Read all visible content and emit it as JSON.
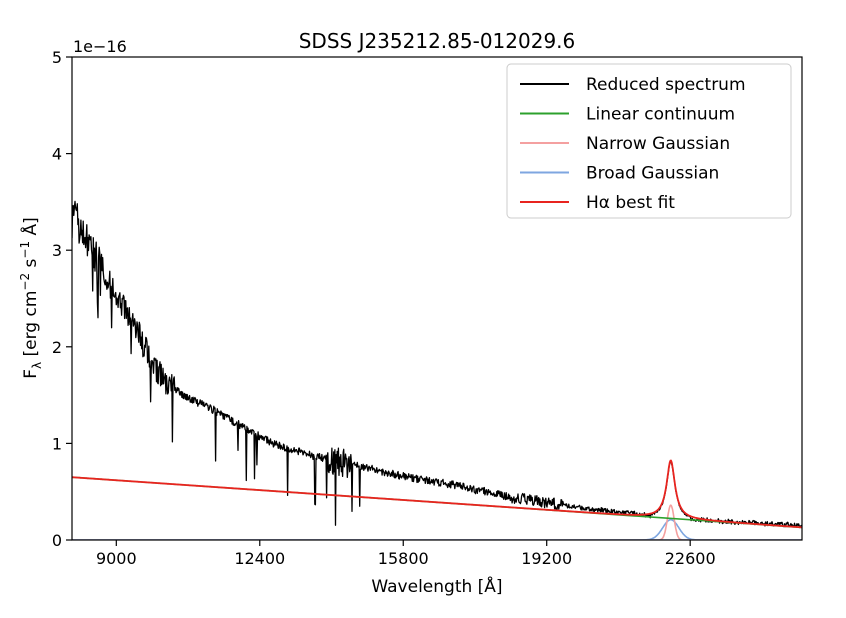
{
  "chart_data": {
    "type": "line",
    "title": "SDSS J235212.85-012029.6",
    "xlabel": "Wavelength [Å]",
    "ylabel_main": "F",
    "ylabel_sub": "λ",
    "ylabel_units_prefix": " [erg cm",
    "ylabel_exp1": "−2",
    "ylabel_units_mid": " s",
    "ylabel_exp2": "−1",
    "ylabel_units_suffix": " Å]",
    "y_offset_label": "1e−16",
    "xlim": [
      7950,
      25250
    ],
    "ylim": [
      0,
      5
    ],
    "xticks": [
      9000,
      12400,
      15800,
      19200,
      22600
    ],
    "xtick_labels": [
      "9000",
      "12400",
      "15800",
      "19200",
      "22600"
    ],
    "yticks": [
      0,
      1,
      2,
      3,
      4,
      5
    ],
    "ytick_labels": [
      "0",
      "1",
      "2",
      "3",
      "4",
      "5"
    ],
    "legend_position": "top-right",
    "legend": [
      {
        "label": "Reduced spectrum",
        "color": "#000000"
      },
      {
        "label": "Linear continuum",
        "color": "#2ca02c"
      },
      {
        "label": "Narrow Gaussian",
        "color": "#f4a0a0"
      },
      {
        "label": "Broad Gaussian",
        "color": "#7ea6e0"
      },
      {
        "label": "Hα best fit",
        "color": "#e8241f"
      }
    ],
    "continuum": {
      "x": [
        7950,
        25250
      ],
      "y": [
        0.65,
        0.13
      ]
    },
    "narrow_gaussian": {
      "center": 22140,
      "amplitude": 0.36,
      "sigma": 80
    },
    "broad_gaussian": {
      "center": 22140,
      "amplitude": 0.21,
      "sigma": 190
    },
    "fit_line": {
      "center": 22140,
      "peak_above_continuum": 0.6,
      "hwhm": 120
    },
    "spectrum": {
      "x": [
        7950,
        8050,
        8150,
        8250,
        8350,
        8450,
        8600,
        8750,
        8900,
        9100,
        9300,
        9500,
        9700,
        9900,
        10100,
        10300,
        10600,
        10900,
        11200,
        11500,
        11800,
        12100,
        12400,
        12700,
        13000,
        13300,
        13600,
        13900,
        14200,
        14500,
        14800,
        15100,
        15400,
        15700,
        16000,
        16300,
        16600,
        16900,
        17200,
        17500,
        17800,
        18100,
        18400,
        18700,
        19000,
        19300,
        19600,
        19900,
        20200,
        20500,
        20800,
        21100,
        21400,
        21700,
        22000,
        22300,
        22600,
        22900,
        23200,
        23500,
        23800,
        24100,
        24400,
        24700,
        25000,
        25250
      ],
      "y": [
        3.3,
        3.35,
        3.2,
        3.15,
        3.05,
        3.0,
        2.85,
        2.75,
        2.6,
        2.45,
        2.35,
        2.2,
        2.0,
        1.8,
        1.68,
        1.58,
        1.5,
        1.43,
        1.37,
        1.3,
        1.22,
        1.15,
        1.07,
        1.0,
        0.95,
        0.92,
        0.88,
        0.85,
        0.82,
        0.79,
        0.76,
        0.73,
        0.7,
        0.67,
        0.64,
        0.62,
        0.6,
        0.58,
        0.55,
        0.52,
        0.5,
        0.47,
        0.44,
        0.42,
        0.4,
        0.38,
        0.36,
        0.34,
        0.32,
        0.31,
        0.29,
        0.28,
        0.27,
        0.25,
        0.24,
        0.23,
        0.22,
        0.21,
        0.2,
        0.19,
        0.18,
        0.18,
        0.17,
        0.16,
        0.16,
        0.15
      ]
    }
  }
}
